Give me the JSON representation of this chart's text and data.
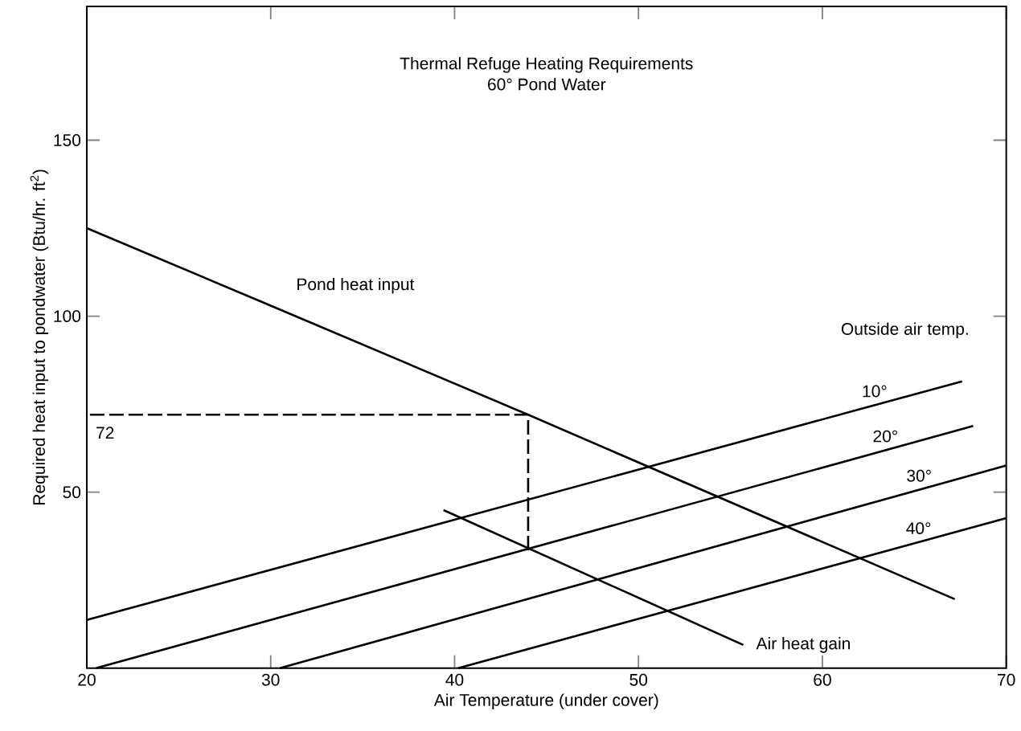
{
  "chart_data": {
    "type": "line",
    "title": "Thermal Refuge Heating Requirements",
    "subtitle": "60° Pond Water",
    "xlabel": "Air Temperature (under cover)",
    "ylabel": "Required heat input to pondwater  (Btu/hr. ft$^{2}$)",
    "xlim": [
      20,
      70
    ],
    "ylim": [
      0,
      188
    ],
    "xticks": [
      20,
      30,
      40,
      50,
      60,
      70
    ],
    "yticks": [
      50,
      100,
      150
    ],
    "grid": false,
    "marker": "none",
    "series": [
      {
        "name": "Pond heat input",
        "color": "#000000",
        "x": [
          20,
          30,
          44,
          67.2
        ],
        "values": [
          125,
          103,
          72,
          19.6
        ]
      },
      {
        "name": "Air heat gain",
        "color": "#000000",
        "x": [
          39.4,
          55.7
        ],
        "values": [
          44.9,
          6.6
        ]
      },
      {
        "name": "10°",
        "color": "#000000",
        "x": [
          20,
          67.6
        ],
        "values": [
          13.7,
          81.5
        ]
      },
      {
        "name": "20°",
        "color": "#000000",
        "x": [
          20.5,
          68.2
        ],
        "values": [
          0,
          68.8
        ]
      },
      {
        "name": "30°",
        "color": "#000000",
        "x": [
          30.5,
          70
        ],
        "values": [
          0,
          57.6
        ]
      },
      {
        "name": "40°",
        "color": "#000000",
        "x": [
          40.2,
          70
        ],
        "values": [
          0,
          42.6
        ]
      },
      {
        "color": "#000000",
        "line_style": "dashed",
        "x": [
          44,
          44,
          20
        ],
        "values": [
          33.5,
          72,
          72
        ]
      }
    ],
    "annotations": [
      "Outside air temp.",
      {
        "text": "72",
        "x": 20,
        "y": 72
      }
    ]
  }
}
